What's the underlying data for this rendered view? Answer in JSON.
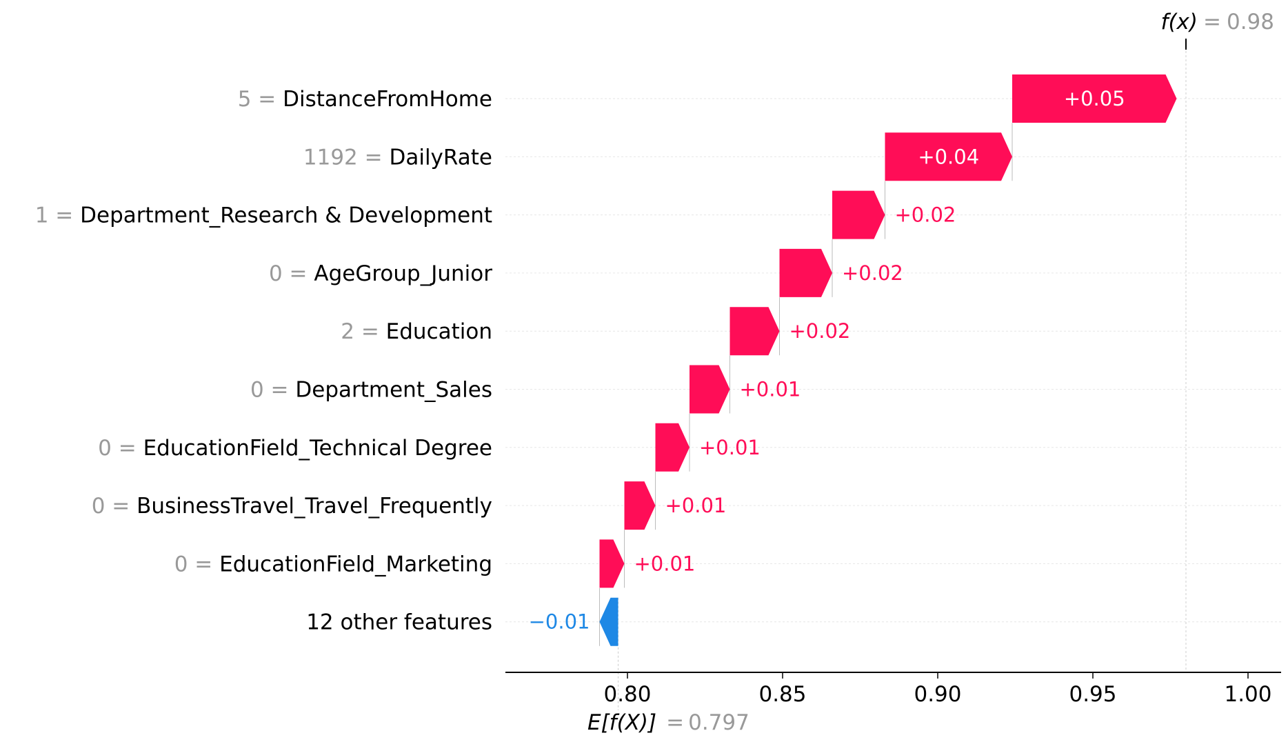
{
  "chart_data": {
    "type": "waterfall",
    "base_value": 0.797,
    "output_value": 0.98,
    "base_label": {
      "expr": "E[f(X)]",
      "eq": "=",
      "value": "0.797"
    },
    "output_label": {
      "expr": "f(x)",
      "eq": "=",
      "value": "0.98"
    },
    "xlim": [
      0.76,
      1.01
    ],
    "xticks": [
      {
        "value": 0.8,
        "label": "0.80"
      },
      {
        "value": 0.85,
        "label": "0.85"
      },
      {
        "value": 0.9,
        "label": "0.90"
      },
      {
        "value": 0.95,
        "label": "0.95"
      },
      {
        "value": 1.0,
        "label": "1.00"
      }
    ],
    "features": [
      {
        "name": "DistanceFromHome",
        "value": "5",
        "shap": 0.053,
        "label": "+0.05"
      },
      {
        "name": "DailyRate",
        "value": "1192",
        "shap": 0.041,
        "label": "+0.04"
      },
      {
        "name": "Department_Research & Development",
        "value": "1",
        "shap": 0.017,
        "label": "+0.02"
      },
      {
        "name": "AgeGroup_Junior",
        "value": "0",
        "shap": 0.017,
        "label": "+0.02"
      },
      {
        "name": "Education",
        "value": "2",
        "shap": 0.016,
        "label": "+0.02"
      },
      {
        "name": "Department_Sales",
        "value": "0",
        "shap": 0.013,
        "label": "+0.01"
      },
      {
        "name": "EducationField_Technical Degree",
        "value": "0",
        "shap": 0.011,
        "label": "+0.01"
      },
      {
        "name": "BusinessTravel_Travel_Frequently",
        "value": "0",
        "shap": 0.01,
        "label": "+0.01"
      },
      {
        "name": "EducationField_Marketing",
        "value": "0",
        "shap": 0.008,
        "label": "+0.01"
      },
      {
        "name": "12 other features",
        "value": "",
        "shap": -0.006,
        "label": "−0.01"
      }
    ],
    "colors": {
      "positive": "#ff0d57",
      "negative": "#1e88e5",
      "muted": "#999999",
      "grid": "#cccccc"
    }
  }
}
